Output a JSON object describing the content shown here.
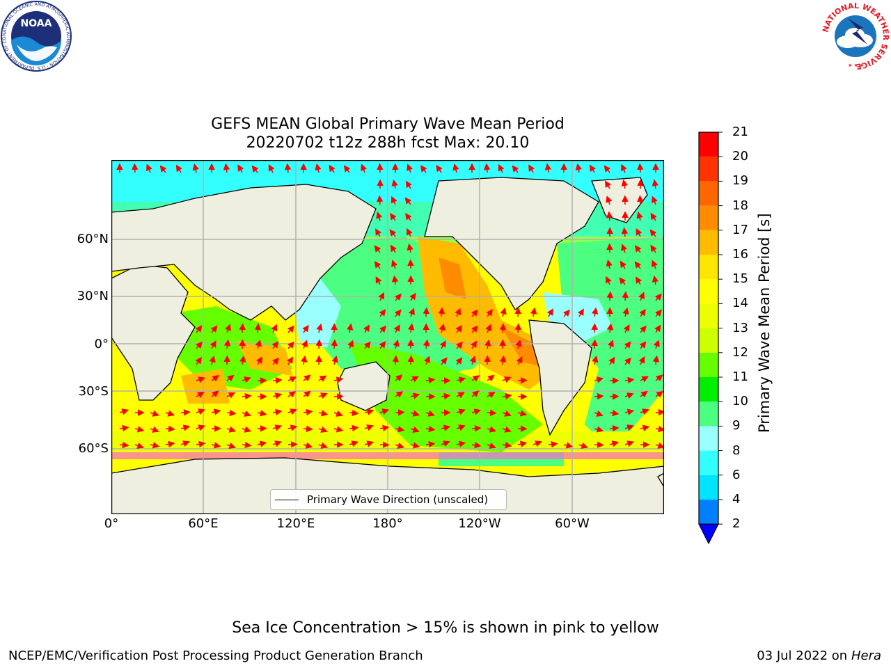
{
  "title": {
    "line1": "GEFS MEAN Global Primary Wave Mean Period",
    "line2": "20220702 t12z 288h fcst   Max: 20.10"
  },
  "logos": {
    "noaa": {
      "center_text": "NOAA",
      "ring_text": "NATIONAL OCEANIC AND ATMOSPHERIC ADMINISTRATION · U.S. DEPARTMENT OF COMMERCE ·",
      "colors": [
        "#1e2f7a",
        "#1a8ad4",
        "#ffffff"
      ]
    },
    "nws": {
      "ring_text": "NATIONAL WEATHER SERVICE",
      "colors": [
        "#e31b23",
        "#1b75bc",
        "#ffffff"
      ]
    }
  },
  "map": {
    "lat_labels": [
      "60°N",
      "30°N",
      "0°",
      "30°S",
      "60°S"
    ],
    "lon_labels": [
      "0°",
      "60°E",
      "120°E",
      "180°",
      "120°W",
      "60°W"
    ],
    "legend_label": "Primary Wave Direction (unscaled)",
    "land_color": "#efefdf",
    "vector_color": "#ff0000"
  },
  "colorbar": {
    "label": "Primary Wave Mean Period [s]",
    "ticks": [
      "21",
      "20",
      "19",
      "18",
      "17",
      "16",
      "15",
      "14",
      "13",
      "12",
      "11",
      "10",
      "9",
      "8",
      "6",
      "4",
      "2"
    ],
    "levels": [
      2,
      4,
      6,
      8,
      9,
      10,
      11,
      12,
      13,
      14,
      15,
      16,
      17,
      18,
      19,
      20,
      21
    ],
    "colors": [
      "#0080ff",
      "#00e5ff",
      "#33ffff",
      "#99ffff",
      "#4dff80",
      "#00ee00",
      "#66ff00",
      "#ccff00",
      "#eeff00",
      "#ffff00",
      "#ffe600",
      "#ffbb00",
      "#ff8c00",
      "#ff6600",
      "#ff3300",
      "#ff0000"
    ],
    "under_color": "#0000ff"
  },
  "footer": {
    "note": "Sea Ice Concentration > 15% is shown in pink to yellow",
    "left": "NCEP/EMC/Verification Post Processing Product Generation Branch",
    "right_prefix": "03 Jul 2022 on ",
    "right_italic": "Hera"
  }
}
